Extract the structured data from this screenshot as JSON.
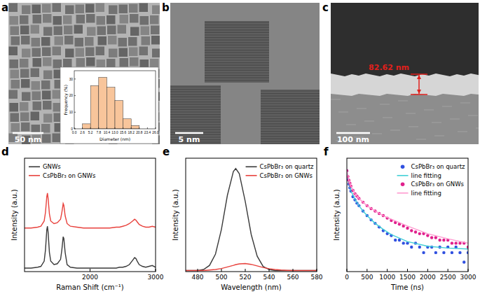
{
  "images": [
    {
      "panel": "a",
      "scale_bar": "50 nm"
    },
    {
      "panel": "b",
      "scale_bar": "5 nm"
    },
    {
      "panel": "c",
      "scale_bar": "100 nm",
      "annotation": "82.62 nm"
    }
  ],
  "chart_data": [
    {
      "type": "histogram",
      "xlabel": "Diameter (nm)",
      "ylabel": "Frequency (%)",
      "bins": [
        2.6,
        5.2,
        7.8,
        10.4,
        13.0,
        15.6,
        18.2,
        20.8
      ],
      "values": [
        3,
        26,
        31,
        25,
        17,
        6,
        2
      ],
      "color": "#f8c59b",
      "xlim": [
        0,
        26
      ],
      "ylim": [
        0,
        35
      ],
      "xticks": [
        {
          "value": 0,
          "label": "0.0"
        },
        2.6,
        5.2,
        7.8,
        10.4,
        {
          "value": 13,
          "label": "13.0"
        },
        15.6,
        18.2,
        20.8,
        23.4,
        {
          "value": 26,
          "label": "26.0"
        }
      ],
      "yticks": [
        0,
        10,
        20,
        30
      ]
    },
    {
      "type": "line",
      "title": "d",
      "xlabel": "Raman Shift (cm⁻¹)",
      "ylabel": "Intensity (a.u.)",
      "x": [
        1000,
        1100,
        1200,
        1250,
        1300,
        1320,
        1340,
        1350,
        1360,
        1380,
        1400,
        1450,
        1500,
        1550,
        1570,
        1590,
        1600,
        1620,
        1650,
        1700,
        1800,
        1900,
        2000,
        2100,
        2200,
        2300,
        2400,
        2450,
        2500,
        2550,
        2600,
        2650,
        2680,
        2700,
        2720,
        2750,
        2800,
        2850,
        2900,
        2950,
        3000
      ],
      "series": [
        {
          "name": "GNWs",
          "color": "#3a3a3a",
          "line_style": "solid",
          "values": [
            0.04,
            0.04,
            0.05,
            0.06,
            0.12,
            0.25,
            0.48,
            0.52,
            0.45,
            0.22,
            0.12,
            0.08,
            0.09,
            0.14,
            0.25,
            0.4,
            0.38,
            0.22,
            0.08,
            0.05,
            0.04,
            0.04,
            0.04,
            0.04,
            0.04,
            0.04,
            0.04,
            0.05,
            0.05,
            0.06,
            0.08,
            0.13,
            0.16,
            0.15,
            0.12,
            0.08,
            0.06,
            0.05,
            0.06,
            0.07,
            0.05
          ]
        },
        {
          "name": "CsPbBr₃ on GNWs",
          "color": "#e8413c",
          "line_style": "solid",
          "values": [
            0.5,
            0.5,
            0.51,
            0.52,
            0.58,
            0.68,
            0.86,
            0.9,
            0.84,
            0.66,
            0.58,
            0.55,
            0.56,
            0.6,
            0.68,
            0.78,
            0.76,
            0.64,
            0.55,
            0.52,
            0.51,
            0.5,
            0.5,
            0.5,
            0.5,
            0.5,
            0.51,
            0.51,
            0.52,
            0.53,
            0.55,
            0.58,
            0.6,
            0.59,
            0.57,
            0.54,
            0.52,
            0.51,
            0.51,
            0.52,
            0.51
          ]
        }
      ],
      "xlim": [
        1000,
        3000
      ],
      "ylim": [
        0,
        1.3
      ],
      "xticks": [
        2000,
        3000
      ],
      "tick_labels": "x",
      "legend": "upper left"
    },
    {
      "type": "line",
      "title": "e",
      "xlabel": "Wavelength (nm)",
      "ylabel": "Intensity (a.u.)",
      "x": [
        470,
        475,
        480,
        485,
        490,
        495,
        500,
        505,
        510,
        512,
        515,
        520,
        525,
        530,
        535,
        540,
        545,
        550,
        555,
        560,
        565,
        570,
        575,
        580
      ],
      "series": [
        {
          "name": "CsPbBr₃ on quartz",
          "color": "#3a3a3a",
          "line_style": "solid",
          "values": [
            0.01,
            0.01,
            0.01,
            0.02,
            0.06,
            0.17,
            0.41,
            0.74,
            0.97,
            1.0,
            0.95,
            0.68,
            0.36,
            0.15,
            0.05,
            0.02,
            0.01,
            0.01,
            0.01,
            0.01,
            0.01,
            0.01,
            0.01,
            0.01
          ]
        },
        {
          "name": "CsPbBr₃ on GNWs",
          "color": "#e8413c",
          "line_style": "solid",
          "values": [
            0.01,
            0.01,
            0.01,
            0.01,
            0.015,
            0.02,
            0.03,
            0.045,
            0.06,
            0.068,
            0.075,
            0.078,
            0.07,
            0.055,
            0.04,
            0.028,
            0.02,
            0.015,
            0.012,
            0.01,
            0.01,
            0.01,
            0.01,
            0.01
          ]
        }
      ],
      "xlim": [
        470,
        580
      ],
      "ylim": [
        0,
        1.1
      ],
      "xticks": [
        480,
        500,
        520,
        540,
        560,
        580
      ],
      "tick_labels": "x",
      "legend": "upper right"
    },
    {
      "type": "scatter",
      "title": "f",
      "xlabel": "Time (ns)",
      "ylabel": "Intensity (a.u.)",
      "series": [
        {
          "name": "CsPbBr₃ on quartz",
          "type": "scatter",
          "marker": "circle",
          "color": "#3050e0",
          "x": [
            0,
            25,
            50,
            75,
            100,
            150,
            200,
            250,
            300,
            400,
            500,
            600,
            700,
            800,
            900,
            1000,
            1100,
            1200,
            1300,
            1400,
            1500,
            1600,
            1700,
            1800,
            1900,
            2000,
            2100,
            2200,
            2300,
            2400,
            2500,
            2600,
            2700,
            2800,
            2900,
            3000
          ],
          "values": [
            800,
            420,
            300,
            230,
            180,
            120,
            95,
            75,
            62,
            42,
            30,
            22,
            17,
            13,
            10,
            8,
            7,
            5,
            5,
            4,
            4,
            3,
            4,
            3,
            2,
            3,
            3,
            2,
            3,
            2,
            3,
            2,
            3,
            2,
            1,
            2
          ]
        },
        {
          "name": "line fitting",
          "type": "line",
          "line_style": "solid",
          "color": "#40cfd6",
          "x": [
            0,
            50,
            100,
            200,
            300,
            400,
            500,
            700,
            900,
            1100,
            1500,
            2000,
            2500,
            3000
          ],
          "values": [
            800,
            300,
            185,
            98,
            62,
            42,
            30,
            17,
            11,
            7.5,
            4.5,
            3.2,
            2.8,
            2.6
          ]
        },
        {
          "name": "CsPbBr₃ on GNWs",
          "type": "scatter",
          "marker": "circle",
          "color": "#e0208c",
          "x": [
            0,
            25,
            50,
            75,
            100,
            150,
            200,
            250,
            300,
            400,
            500,
            600,
            700,
            800,
            900,
            1000,
            1100,
            1200,
            1300,
            1400,
            1500,
            1600,
            1700,
            1800,
            1900,
            2000,
            2100,
            2200,
            2300,
            2400,
            2500,
            2600,
            2700,
            2800,
            2900,
            3000
          ],
          "values": [
            800,
            520,
            400,
            320,
            260,
            190,
            150,
            125,
            105,
            80,
            62,
            50,
            42,
            35,
            30,
            25,
            21,
            18,
            16,
            14,
            12,
            10,
            9,
            8,
            8,
            7,
            6,
            6,
            5,
            5,
            5,
            4,
            4,
            4,
            4,
            3
          ]
        },
        {
          "name": "line fitting",
          "type": "line",
          "line_style": "solid",
          "color": "#ff9ad0",
          "x": [
            0,
            50,
            100,
            200,
            300,
            400,
            500,
            700,
            900,
            1100,
            1500,
            2000,
            2500,
            3000
          ],
          "values": [
            800,
            400,
            260,
            150,
            105,
            80,
            62,
            42,
            30,
            23,
            14,
            8,
            5.5,
            4
          ]
        }
      ],
      "xlim": [
        0,
        3000
      ],
      "ylim": [
        0.5,
        2000
      ],
      "log": "y",
      "xticks": [
        0,
        500,
        1000,
        1500,
        2000,
        2500,
        3000
      ],
      "tick_labels": "x",
      "legend": "upper right"
    }
  ]
}
